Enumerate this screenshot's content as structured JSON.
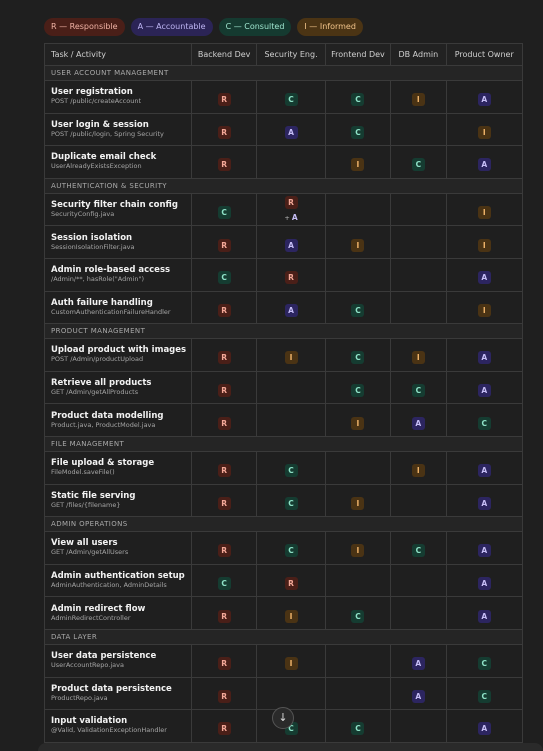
{
  "legend": [
    {
      "code": "R",
      "label": "R — Responsible"
    },
    {
      "code": "A",
      "label": "A — Accountable"
    },
    {
      "code": "C",
      "label": "C — Consulted"
    },
    {
      "code": "I",
      "label": "I — Informed"
    }
  ],
  "columns": [
    "Task / Activity",
    "Backend Dev",
    "Security Eng.",
    "Frontend Dev",
    "DB Admin",
    "Product Owner"
  ],
  "sections": [
    {
      "title": "USER ACCOUNT MANAGEMENT",
      "rows": [
        {
          "task": "User registration",
          "sub": "POST /public/createAccount",
          "cells": [
            "R",
            "C",
            "C",
            "I",
            "A"
          ]
        },
        {
          "task": "User login & session",
          "sub": "POST /public/login, Spring Security",
          "cells": [
            "R",
            "A",
            "C",
            "",
            "I"
          ]
        },
        {
          "task": "Duplicate email check",
          "sub": "UserAlreadyExistsException",
          "cells": [
            "R",
            "",
            "I",
            "C",
            "A"
          ]
        }
      ]
    },
    {
      "title": "AUTHENTICATION & SECURITY",
      "rows": [
        {
          "task": "Security filter chain config",
          "sub": "SecurityConfig.java",
          "cells": [
            "C",
            "R+A",
            "",
            "",
            "I"
          ]
        },
        {
          "task": "Session isolation",
          "sub": "SessionIsolationFilter.java",
          "cells": [
            "R",
            "A",
            "I",
            "",
            "I"
          ]
        },
        {
          "task": "Admin role-based access",
          "sub": "/Admin/**, hasRole(\"Admin\")",
          "cells": [
            "C",
            "R",
            "",
            "",
            "A"
          ]
        },
        {
          "task": "Auth failure handling",
          "sub": "CustomAuthenticationFailureHandler",
          "cells": [
            "R",
            "A",
            "C",
            "",
            "I"
          ]
        }
      ]
    },
    {
      "title": "PRODUCT MANAGEMENT",
      "rows": [
        {
          "task": "Upload product with images",
          "sub": "POST /Admin/productUpload",
          "cells": [
            "R",
            "I",
            "C",
            "I",
            "A"
          ]
        },
        {
          "task": "Retrieve all products",
          "sub": "GET /Admin/getAllProducts",
          "cells": [
            "R",
            "",
            "C",
            "C",
            "A"
          ]
        },
        {
          "task": "Product data modelling",
          "sub": "Product.java, ProductModel.java",
          "cells": [
            "R",
            "",
            "I",
            "A",
            "C"
          ]
        }
      ]
    },
    {
      "title": "FILE MANAGEMENT",
      "rows": [
        {
          "task": "File upload & storage",
          "sub": "FileModel.saveFile()",
          "cells": [
            "R",
            "C",
            "",
            "I",
            "A"
          ]
        },
        {
          "task": "Static file serving",
          "sub": "GET /files/{filename}",
          "cells": [
            "R",
            "C",
            "I",
            "",
            "A"
          ]
        }
      ]
    },
    {
      "title": "ADMIN OPERATIONS",
      "rows": [
        {
          "task": "View all users",
          "sub": "GET /Admin/getAllUsers",
          "cells": [
            "R",
            "C",
            "I",
            "C",
            "A"
          ]
        },
        {
          "task": "Admin authentication setup",
          "sub": "AdminAuthentication, AdminDetails",
          "cells": [
            "C",
            "R",
            "",
            "",
            "A"
          ]
        },
        {
          "task": "Admin redirect flow",
          "sub": "AdminRedirectController",
          "cells": [
            "R",
            "I",
            "C",
            "",
            "A"
          ]
        }
      ]
    },
    {
      "title": "DATA LAYER",
      "rows": [
        {
          "task": "User data persistence",
          "sub": "UserAccountRepo.java",
          "cells": [
            "R",
            "I",
            "",
            "A",
            "C"
          ]
        },
        {
          "task": "Product data persistence",
          "sub": "ProductRepo.java",
          "cells": [
            "R",
            "",
            "",
            "A",
            "C"
          ]
        },
        {
          "task": "Input validation",
          "sub": "@Valid, ValidationExceptionHandler",
          "cells": [
            "R",
            "C",
            "C",
            "",
            "A"
          ]
        }
      ]
    }
  ]
}
